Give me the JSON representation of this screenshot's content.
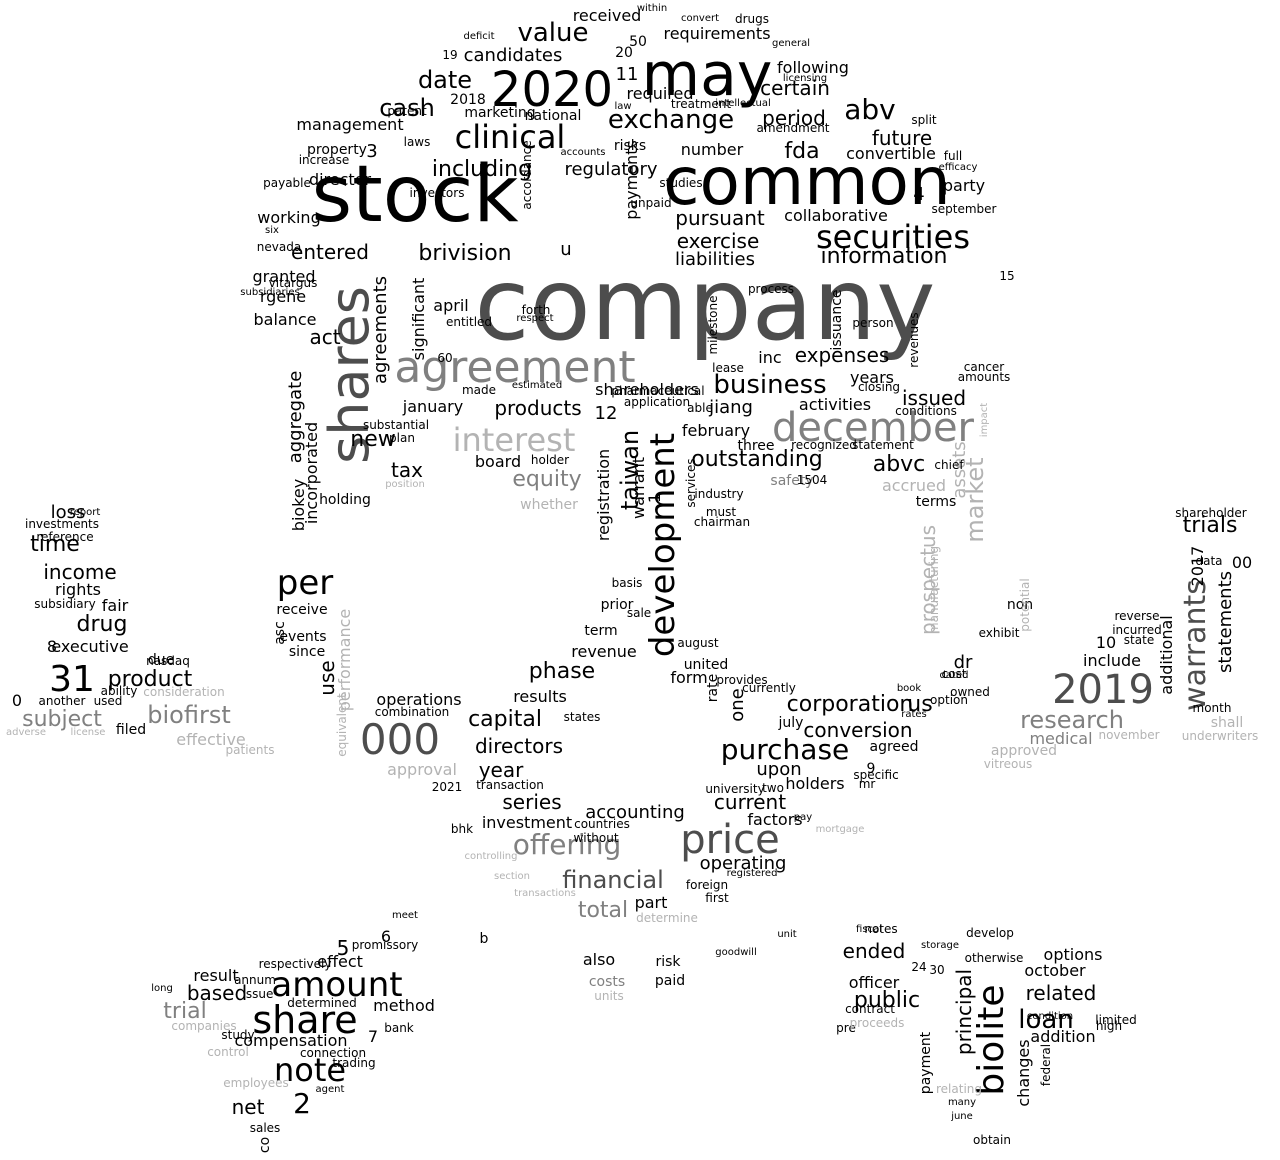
{
  "words": [
    {
      "text": "company",
      "tone": 1
    },
    {
      "text": "stock",
      "tone": 0
    },
    {
      "text": "common",
      "tone": 0
    },
    {
      "text": "may",
      "tone": 0
    },
    {
      "text": "2020",
      "tone": 0
    },
    {
      "text": "shares",
      "tone": 1
    },
    {
      "text": "agreement",
      "tone": 2
    },
    {
      "text": "december",
      "tone": 2
    },
    {
      "text": "price",
      "tone": 1
    },
    {
      "text": "000",
      "tone": 1
    },
    {
      "text": "development",
      "tone": 0
    },
    {
      "text": "securities",
      "tone": 0
    },
    {
      "text": "2019",
      "tone": 1
    },
    {
      "text": "share",
      "tone": 0
    },
    {
      "text": "amount",
      "tone": 0
    },
    {
      "text": "biolite",
      "tone": 0
    },
    {
      "text": "clinical",
      "tone": 0
    },
    {
      "text": "interest",
      "tone": 3
    },
    {
      "text": "per",
      "tone": 0
    },
    {
      "text": "warrants",
      "tone": 1
    },
    {
      "text": "offering",
      "tone": 2
    },
    {
      "text": "31",
      "tone": 0
    },
    {
      "text": "value",
      "tone": 0
    },
    {
      "text": "exchange",
      "tone": 0
    },
    {
      "text": "business",
      "tone": 0
    },
    {
      "text": "purchase",
      "tone": 0
    },
    {
      "text": "market",
      "tone": 3
    },
    {
      "text": "note",
      "tone": 0
    },
    {
      "text": "financial",
      "tone": 1
    },
    {
      "text": "abv",
      "tone": 0
    },
    {
      "text": "cash",
      "tone": 0
    },
    {
      "text": "date",
      "tone": 0
    },
    {
      "text": "information",
      "tone": 0
    },
    {
      "text": "outstanding",
      "tone": 0
    },
    {
      "text": "corporation",
      "tone": 0
    },
    {
      "text": "capital",
      "tone": 0
    },
    {
      "text": "brivision",
      "tone": 0
    },
    {
      "text": "taiwan",
      "tone": 0
    },
    {
      "text": "including",
      "tone": 0
    },
    {
      "text": "loan",
      "tone": 0
    },
    {
      "text": "products",
      "tone": 0
    },
    {
      "text": "biofirst",
      "tone": 2
    },
    {
      "text": "research",
      "tone": 2
    },
    {
      "text": "subject",
      "tone": 2
    },
    {
      "text": "product",
      "tone": 0
    },
    {
      "text": "conversion",
      "tone": 0
    },
    {
      "text": "phase",
      "tone": 0
    },
    {
      "text": "directors",
      "tone": 0
    },
    {
      "text": "certain",
      "tone": 0
    },
    {
      "text": "future",
      "tone": 0
    },
    {
      "text": "period",
      "tone": 0
    },
    {
      "text": "pursuant",
      "tone": 0
    },
    {
      "text": "exercise",
      "tone": 0
    },
    {
      "text": "liabilities",
      "tone": 0
    },
    {
      "text": "expenses",
      "tone": 0
    },
    {
      "text": "issued",
      "tone": 0
    },
    {
      "text": "entered",
      "tone": 0
    },
    {
      "text": "regulatory",
      "tone": 0
    },
    {
      "text": "candidates",
      "tone": 0
    },
    {
      "text": "received",
      "tone": 0
    },
    {
      "text": "requirements",
      "tone": 0
    },
    {
      "text": "following",
      "tone": 0
    },
    {
      "text": "required",
      "tone": 0
    },
    {
      "text": "fda",
      "tone": 0
    },
    {
      "text": "number",
      "tone": 0
    },
    {
      "text": "convertible",
      "tone": 0
    },
    {
      "text": "collaborative",
      "tone": 0
    },
    {
      "text": "party",
      "tone": 0
    },
    {
      "text": "years",
      "tone": 0
    },
    {
      "text": "activities",
      "tone": 0
    },
    {
      "text": "abvc",
      "tone": 0
    },
    {
      "text": "accrued",
      "tone": 3
    },
    {
      "text": "equity",
      "tone": 2
    },
    {
      "text": "board",
      "tone": 0
    },
    {
      "text": "tax",
      "tone": 0
    },
    {
      "text": "new",
      "tone": 0
    },
    {
      "text": "act",
      "tone": 0
    },
    {
      "text": "agreements",
      "tone": 0
    },
    {
      "text": "aggregate",
      "tone": 0
    },
    {
      "text": "biokey",
      "tone": 0
    },
    {
      "text": "incorporated",
      "tone": 0
    },
    {
      "text": "use",
      "tone": 0
    },
    {
      "text": "performance",
      "tone": 3
    },
    {
      "text": "prospectus",
      "tone": 3
    },
    {
      "text": "assets",
      "tone": 3
    },
    {
      "text": "us",
      "tone": 0
    },
    {
      "text": "dr",
      "tone": 0
    },
    {
      "text": "year",
      "tone": 0
    },
    {
      "text": "series",
      "tone": 0
    },
    {
      "text": "accounting",
      "tone": 0
    },
    {
      "text": "investment",
      "tone": 0
    },
    {
      "text": "current",
      "tone": 0
    },
    {
      "text": "factors",
      "tone": 0
    },
    {
      "text": "operating",
      "tone": 0
    },
    {
      "text": "upon",
      "tone": 0
    },
    {
      "text": "holders",
      "tone": 0
    },
    {
      "text": "revenue",
      "tone": 0
    },
    {
      "text": "results",
      "tone": 0
    },
    {
      "text": "operations",
      "tone": 0
    },
    {
      "text": "approval",
      "tone": 3
    },
    {
      "text": "total",
      "tone": 2
    },
    {
      "text": "part",
      "tone": 0
    },
    {
      "text": "form",
      "tone": 0
    },
    {
      "text": "one",
      "tone": 0
    },
    {
      "text": "registration",
      "tone": 0
    },
    {
      "text": "warrant",
      "tone": 0
    },
    {
      "text": "trials",
      "tone": 0
    },
    {
      "text": "statements",
      "tone": 0
    },
    {
      "text": "additional",
      "tone": 0
    },
    {
      "text": "medical",
      "tone": 2
    },
    {
      "text": "shall",
      "tone": 3
    },
    {
      "text": "include",
      "tone": 0
    },
    {
      "text": "10",
      "tone": 0
    },
    {
      "text": "2017",
      "tone": 0
    },
    {
      "text": "00",
      "tone": 0
    },
    {
      "text": "loss",
      "tone": 0
    },
    {
      "text": "time",
      "tone": 0
    },
    {
      "text": "income",
      "tone": 0
    },
    {
      "text": "rights",
      "tone": 0
    },
    {
      "text": "drug",
      "tone": 0
    },
    {
      "text": "fair",
      "tone": 0
    },
    {
      "text": "executive",
      "tone": 0
    },
    {
      "text": "due",
      "tone": 0
    },
    {
      "text": "effective",
      "tone": 3
    },
    {
      "text": "8",
      "tone": 0
    },
    {
      "text": "0",
      "tone": 0
    },
    {
      "text": "trial",
      "tone": 2
    },
    {
      "text": "based",
      "tone": 0
    },
    {
      "text": "result",
      "tone": 0
    },
    {
      "text": "compensation",
      "tone": 0
    },
    {
      "text": "net",
      "tone": 0
    },
    {
      "text": "2",
      "tone": 0
    },
    {
      "text": "5",
      "tone": 0
    },
    {
      "text": "6",
      "tone": 0
    },
    {
      "text": "effect",
      "tone": 0
    },
    {
      "text": "method",
      "tone": 0
    },
    {
      "text": "ended",
      "tone": 0
    },
    {
      "text": "public",
      "tone": 0
    },
    {
      "text": "officer",
      "tone": 0
    },
    {
      "text": "related",
      "tone": 0
    },
    {
      "text": "addition",
      "tone": 0
    },
    {
      "text": "changes",
      "tone": 0
    },
    {
      "text": "principal",
      "tone": 0
    },
    {
      "text": "options",
      "tone": 0
    },
    {
      "text": "october",
      "tone": 0
    },
    {
      "text": "payment",
      "tone": 0
    },
    {
      "text": "also",
      "tone": 0
    },
    {
      "text": "costs",
      "tone": 2
    },
    {
      "text": "risk",
      "tone": 0
    },
    {
      "text": "paid",
      "tone": 0
    },
    {
      "text": "jiang",
      "tone": 0
    },
    {
      "text": "inc",
      "tone": 0
    },
    {
      "text": "safety",
      "tone": 2
    },
    {
      "text": "three",
      "tone": 0
    },
    {
      "text": "february",
      "tone": 0
    },
    {
      "text": "january",
      "tone": 0
    },
    {
      "text": "shareholders",
      "tone": 0
    },
    {
      "text": "april",
      "tone": 0
    },
    {
      "text": "significant",
      "tone": 0
    },
    {
      "text": "granted",
      "tone": 0
    },
    {
      "text": "rgene",
      "tone": 0
    },
    {
      "text": "balance",
      "tone": 0
    },
    {
      "text": "working",
      "tone": 0
    },
    {
      "text": "director",
      "tone": 0
    },
    {
      "text": "management",
      "tone": 0
    },
    {
      "text": "3",
      "tone": 0
    },
    {
      "text": "4",
      "tone": 0
    },
    {
      "text": "11",
      "tone": 0
    },
    {
      "text": "12",
      "tone": 0
    },
    {
      "text": "u",
      "tone": 0
    },
    {
      "text": "payments",
      "tone": 0
    },
    {
      "text": "risks",
      "tone": 0
    },
    {
      "text": "marketing",
      "tone": 0
    },
    {
      "text": "national",
      "tone": 0
    },
    {
      "text": "2018",
      "tone": 0
    },
    {
      "text": "20",
      "tone": 0
    },
    {
      "text": "50",
      "tone": 0
    },
    {
      "text": "agreed",
      "tone": 0
    },
    {
      "text": "july",
      "tone": 0
    },
    {
      "text": "terms",
      "tone": 0
    },
    {
      "text": "non",
      "tone": 0
    },
    {
      "text": "approved",
      "tone": 3
    },
    {
      "text": "prior",
      "tone": 0
    },
    {
      "text": "term",
      "tone": 0
    },
    {
      "text": "united",
      "tone": 0
    },
    {
      "text": "provides",
      "tone": 0
    },
    {
      "text": "rate",
      "tone": 0
    },
    {
      "text": "since",
      "tone": 0
    },
    {
      "text": "events",
      "tone": 0
    },
    {
      "text": "receive",
      "tone": 0
    },
    {
      "text": "asc",
      "tone": 0
    },
    {
      "text": "holding",
      "tone": 0
    },
    {
      "text": "ability",
      "tone": 0
    },
    {
      "text": "nasdaq",
      "tone": 0
    },
    {
      "text": "used",
      "tone": 0
    },
    {
      "text": "filed",
      "tone": 0
    },
    {
      "text": "another",
      "tone": 0
    },
    {
      "text": "investments",
      "tone": 0
    },
    {
      "text": "reference",
      "tone": 0
    },
    {
      "text": "subsidiary",
      "tone": 0
    },
    {
      "text": "report",
      "tone": 0
    },
    {
      "text": "consideration",
      "tone": 3
    },
    {
      "text": "patients",
      "tone": 3
    },
    {
      "text": "adverse",
      "tone": 3
    },
    {
      "text": "license",
      "tone": 3
    },
    {
      "text": "whether",
      "tone": 3
    },
    {
      "text": "plan",
      "tone": 0
    },
    {
      "text": "substantial",
      "tone": 0
    },
    {
      "text": "made",
      "tone": 0
    },
    {
      "text": "estimated",
      "tone": 0
    },
    {
      "text": "application",
      "tone": 0
    },
    {
      "text": "pharmaceutical",
      "tone": 0
    },
    {
      "text": "able",
      "tone": 0
    },
    {
      "text": "holder",
      "tone": 0
    },
    {
      "text": "entitled",
      "tone": 0
    },
    {
      "text": "forth",
      "tone": 0
    },
    {
      "text": "respect",
      "tone": 0
    },
    {
      "text": "milestone",
      "tone": 0
    },
    {
      "text": "process",
      "tone": 0
    },
    {
      "text": "lease",
      "tone": 0
    },
    {
      "text": "issuance",
      "tone": 0
    },
    {
      "text": "person",
      "tone": 0
    },
    {
      "text": "revenues",
      "tone": 0
    },
    {
      "text": "closing",
      "tone": 0
    },
    {
      "text": "conditions",
      "tone": 0
    },
    {
      "text": "recognized",
      "tone": 0
    },
    {
      "text": "statement",
      "tone": 0
    },
    {
      "text": "cancer",
      "tone": 0
    },
    {
      "text": "amounts",
      "tone": 0
    },
    {
      "text": "owned",
      "tone": 0
    },
    {
      "text": "option",
      "tone": 0
    },
    {
      "text": "cost",
      "tone": 0
    },
    {
      "text": "industry",
      "tone": 0
    },
    {
      "text": "chairman",
      "tone": 0
    },
    {
      "text": "must",
      "tone": 0
    },
    {
      "text": "services",
      "tone": 0
    },
    {
      "text": "combination",
      "tone": 0
    },
    {
      "text": "states",
      "tone": 0
    },
    {
      "text": "transaction",
      "tone": 0
    },
    {
      "text": "countries",
      "tone": 0
    },
    {
      "text": "without",
      "tone": 0
    },
    {
      "text": "foreign",
      "tone": 0
    },
    {
      "text": "first",
      "tone": 0
    },
    {
      "text": "registered",
      "tone": 0
    },
    {
      "text": "pay",
      "tone": 0
    },
    {
      "text": "two",
      "tone": 0
    },
    {
      "text": "university",
      "tone": 0
    },
    {
      "text": "currently",
      "tone": 0
    },
    {
      "text": "specific",
      "tone": 0
    },
    {
      "text": "mr",
      "tone": 0
    },
    {
      "text": "9",
      "tone": 0
    },
    {
      "text": "bhk",
      "tone": 0
    },
    {
      "text": "2021",
      "tone": 0
    },
    {
      "text": "basis",
      "tone": 0
    },
    {
      "text": "sale",
      "tone": 0
    },
    {
      "text": "august",
      "tone": 0
    },
    {
      "text": "month",
      "tone": 0
    },
    {
      "text": "reverse",
      "tone": 0
    },
    {
      "text": "incurred",
      "tone": 0
    },
    {
      "text": "state",
      "tone": 0
    },
    {
      "text": "data",
      "tone": 0
    },
    {
      "text": "shareholder",
      "tone": 0
    },
    {
      "text": "notes",
      "tone": 0
    },
    {
      "text": "develop",
      "tone": 0
    },
    {
      "text": "promissory",
      "tone": 0
    },
    {
      "text": "respectively",
      "tone": 0
    },
    {
      "text": "annum",
      "tone": 0
    },
    {
      "text": "issue",
      "tone": 0
    },
    {
      "text": "determined",
      "tone": 0
    },
    {
      "text": "connection",
      "tone": 0
    },
    {
      "text": "trading",
      "tone": 0
    },
    {
      "text": "bank",
      "tone": 0
    },
    {
      "text": "agent",
      "tone": 0
    },
    {
      "text": "sales",
      "tone": 0
    },
    {
      "text": "co",
      "tone": 0
    },
    {
      "text": "study",
      "tone": 0
    },
    {
      "text": "long",
      "tone": 0
    },
    {
      "text": "meet",
      "tone": 0
    },
    {
      "text": "b",
      "tone": 0
    },
    {
      "text": "7",
      "tone": 0
    },
    {
      "text": "24",
      "tone": 0
    },
    {
      "text": "30",
      "tone": 0
    },
    {
      "text": "obtain",
      "tone": 0
    },
    {
      "text": "contract",
      "tone": 0
    },
    {
      "text": "pre",
      "tone": 0
    },
    {
      "text": "unit",
      "tone": 0
    },
    {
      "text": "goodwill",
      "tone": 0
    },
    {
      "text": "units",
      "tone": 3
    },
    {
      "text": "companies",
      "tone": 3
    },
    {
      "text": "control",
      "tone": 3
    },
    {
      "text": "employees",
      "tone": 3
    },
    {
      "text": "relating",
      "tone": 3
    },
    {
      "text": "proceeds",
      "tone": 3
    },
    {
      "text": "determine",
      "tone": 3
    },
    {
      "text": "section",
      "tone": 3
    },
    {
      "text": "controlling",
      "tone": 3
    },
    {
      "text": "transactions",
      "tone": 3
    },
    {
      "text": "position",
      "tone": 3
    },
    {
      "text": "underwriters",
      "tone": 3
    },
    {
      "text": "november",
      "tone": 3
    },
    {
      "text": "equivalent",
      "tone": 3
    },
    {
      "text": "impact",
      "tone": 3
    },
    {
      "text": "manufacturing",
      "tone": 3
    },
    {
      "text": "potential",
      "tone": 3
    },
    {
      "text": "limited",
      "tone": 0
    },
    {
      "text": "high",
      "tone": 0
    },
    {
      "text": "federal",
      "tone": 0
    },
    {
      "text": "condition",
      "tone": 0
    },
    {
      "text": "june",
      "tone": 0
    },
    {
      "text": "many",
      "tone": 0
    },
    {
      "text": "vitreous",
      "tone": 3
    },
    {
      "text": "1504",
      "tone": 0
    },
    {
      "text": "chief",
      "tone": 0
    },
    {
      "text": "exhibit",
      "tone": 0
    },
    {
      "text": "dated",
      "tone": 0
    },
    {
      "text": "book",
      "tone": 0
    },
    {
      "text": "rates",
      "tone": 0
    },
    {
      "text": "fiscal",
      "tone": 0
    },
    {
      "text": "storage",
      "tone": 0
    },
    {
      "text": "otherwise",
      "tone": 0
    },
    {
      "text": "full",
      "tone": 0
    },
    {
      "text": "split",
      "tone": 0
    },
    {
      "text": "september",
      "tone": 0
    },
    {
      "text": "efficacy",
      "tone": 0
    },
    {
      "text": "treatment",
      "tone": 0
    },
    {
      "text": "intellectual",
      "tone": 0
    },
    {
      "text": "amendment",
      "tone": 0
    },
    {
      "text": "licensing",
      "tone": 0
    },
    {
      "text": "general",
      "tone": 0
    },
    {
      "text": "drugs",
      "tone": 0
    },
    {
      "text": "convert",
      "tone": 0
    },
    {
      "text": "within",
      "tone": 0
    },
    {
      "text": "deficit",
      "tone": 0
    },
    {
      "text": "law",
      "tone": 0
    },
    {
      "text": "laws",
      "tone": 0
    },
    {
      "text": "patent",
      "tone": 0
    },
    {
      "text": "property",
      "tone": 0
    },
    {
      "text": "increase",
      "tone": 0
    },
    {
      "text": "payable",
      "tone": 0
    },
    {
      "text": "nevada",
      "tone": 0
    },
    {
      "text": "six",
      "tone": 0
    },
    {
      "text": "subsidiaries",
      "tone": 0
    },
    {
      "text": "vitargus",
      "tone": 0
    },
    {
      "text": "studies",
      "tone": 0
    },
    {
      "text": "accounts",
      "tone": 0
    },
    {
      "text": "investors",
      "tone": 0
    },
    {
      "text": "accordance",
      "tone": 0
    },
    {
      "text": "unpaid",
      "tone": 0
    },
    {
      "text": "15",
      "tone": 0
    },
    {
      "text": "19",
      "tone": 0
    },
    {
      "text": "60",
      "tone": 0
    },
    {
      "text": "1",
      "tone": 0
    },
    {
      "text": "mortgage",
      "tone": 3
    }
  ]
}
